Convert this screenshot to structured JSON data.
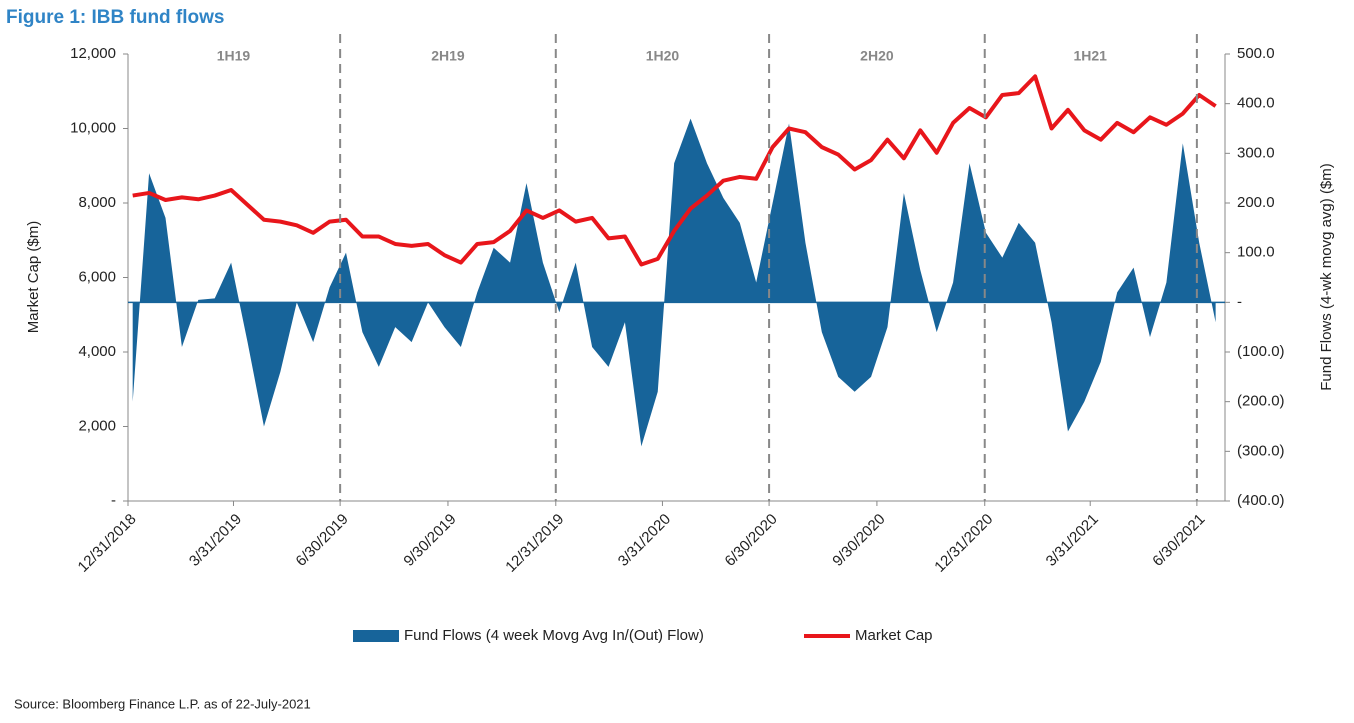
{
  "chart_data": {
    "type": "area_line",
    "title": "Figure 1: IBB fund flows",
    "source": "Source: Bloomberg Finance L.P. as of 22-July-2021",
    "ylabel": "Market Cap ($m)",
    "y2label": "Fund Flows (4-wk movg avg) ($m)",
    "period_labels": [
      "1H19",
      "2H19",
      "1H20",
      "2H20",
      "1H21"
    ],
    "x": [
      "1/4/2019",
      "1/18/2019",
      "2/1/2019",
      "2/15/2019",
      "3/1/2019",
      "3/15/2019",
      "3/29/2019",
      "4/12/2019",
      "4/26/2019",
      "5/10/2019",
      "5/24/2019",
      "6/7/2019",
      "6/21/2019",
      "7/5/2019",
      "7/19/2019",
      "8/2/2019",
      "8/16/2019",
      "8/30/2019",
      "9/13/2019",
      "9/27/2019",
      "10/11/2019",
      "10/25/2019",
      "11/8/2019",
      "11/22/2019",
      "12/6/2019",
      "12/20/2019",
      "1/3/2020",
      "1/17/2020",
      "1/31/2020",
      "2/14/2020",
      "2/28/2020",
      "3/13/2020",
      "3/27/2020",
      "4/10/2020",
      "4/24/2020",
      "5/8/2020",
      "5/22/2020",
      "6/5/2020",
      "6/19/2020",
      "7/3/2020",
      "7/17/2020",
      "7/31/2020",
      "8/14/2020",
      "8/28/2020",
      "9/11/2020",
      "9/25/2020",
      "10/9/2020",
      "10/23/2020",
      "11/6/2020",
      "11/20/2020",
      "12/4/2020",
      "12/18/2020",
      "1/1/2021",
      "1/15/2021",
      "1/29/2021",
      "2/12/2021",
      "2/26/2021",
      "3/12/2021",
      "3/26/2021",
      "4/9/2021",
      "4/23/2021",
      "5/7/2021",
      "5/21/2021",
      "6/4/2021",
      "6/18/2021",
      "7/2/2021",
      "7/16/2021"
    ],
    "series": [
      {
        "name": "Fund Flows (4 week Movg Avg In/(Out) Flow)",
        "color": "#17649a",
        "axis": "y2",
        "values": [
          -200,
          260,
          170,
          -90,
          5,
          8,
          80,
          -80,
          -250,
          -140,
          0,
          -80,
          30,
          100,
          -60,
          -130,
          -50,
          -80,
          0,
          -50,
          -90,
          20,
          110,
          80,
          240,
          80,
          -20,
          80,
          -90,
          -130,
          -40,
          -290,
          -180,
          280,
          370,
          280,
          210,
          160,
          40,
          200,
          360,
          120,
          -60,
          -150,
          -180,
          -150,
          -50,
          220,
          65,
          -60,
          40,
          280,
          140,
          90,
          160,
          120,
          -40,
          -260,
          -200,
          -120,
          20,
          70,
          -70,
          40,
          320,
          120,
          -40
        ]
      },
      {
        "name": "Market Cap",
        "color": "#e8161b",
        "axis": "y",
        "values": [
          8200,
          8270,
          8080,
          8150,
          8100,
          8200,
          8350,
          7950,
          7550,
          7500,
          7400,
          7200,
          7500,
          7550,
          7100,
          7100,
          6900,
          6850,
          6900,
          6600,
          6400,
          6900,
          6950,
          7250,
          7800,
          7600,
          7800,
          7500,
          7600,
          7050,
          7100,
          6350,
          6500,
          7250,
          7850,
          8200,
          8600,
          8700,
          8650,
          9500,
          10000,
          9900,
          9500,
          9300,
          8900,
          9150,
          9700,
          9200,
          9950,
          9350,
          10150,
          10550,
          10300,
          10900,
          10950,
          11400,
          10000,
          10500,
          9950,
          9700,
          10150,
          9900,
          10300,
          10100,
          10400,
          10900,
          10600
        ]
      }
    ],
    "xlim": [
      "12/31/2018",
      "7/24/2021"
    ],
    "xticks": [
      "12/31/2018",
      "3/31/2019",
      "6/30/2019",
      "9/30/2019",
      "12/31/2019",
      "3/31/2020",
      "6/30/2020",
      "9/30/2020",
      "12/31/2020",
      "3/31/2021",
      "6/30/2021"
    ],
    "ylim": [
      0,
      12000
    ],
    "yticks": [
      {
        "value": 0,
        "label": "-"
      },
      {
        "value": 2000,
        "label": "2,000"
      },
      {
        "value": 4000,
        "label": "4,000"
      },
      {
        "value": 6000,
        "label": "6,000"
      },
      {
        "value": 8000,
        "label": "8,000"
      },
      {
        "value": 10000,
        "label": "10,000"
      },
      {
        "value": 12000,
        "label": "12,000"
      }
    ],
    "y2lim": [
      -400,
      500
    ],
    "y2ticks": [
      {
        "value": -400,
        "label": "(400.0)"
      },
      {
        "value": -300,
        "label": "(300.0)"
      },
      {
        "value": -200,
        "label": "(200.0)"
      },
      {
        "value": -100,
        "label": "(100.0)"
      },
      {
        "value": 0,
        "label": "-"
      },
      {
        "value": 100,
        "label": "100.0"
      },
      {
        "value": 200,
        "label": "200.0"
      },
      {
        "value": 300,
        "label": "300.0"
      },
      {
        "value": 400,
        "label": "400.0"
      },
      {
        "value": 500,
        "label": "500.0"
      }
    ],
    "legend": "bottom"
  }
}
